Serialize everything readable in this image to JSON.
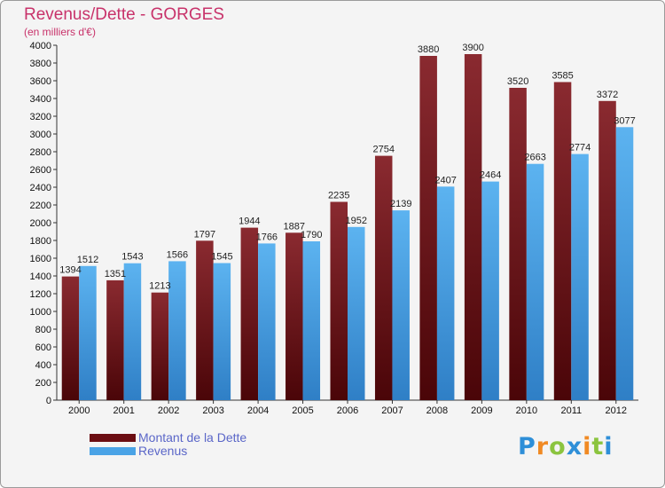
{
  "header": {
    "title": "Revenus/Dette - GORGES",
    "subtitle": "(en milliers d'€)"
  },
  "chart_data": {
    "type": "bar",
    "categories": [
      "2000",
      "2001",
      "2002",
      "2003",
      "2004",
      "2005",
      "2006",
      "2007",
      "2008",
      "2009",
      "2010",
      "2011",
      "2012"
    ],
    "series": [
      {
        "name": "Montant de la Dette",
        "color": "#7b1f24",
        "values": [
          1394,
          1351,
          1213,
          1797,
          1944,
          1887,
          2235,
          2754,
          3880,
          3900,
          3520,
          3585,
          3372
        ],
        "labels": [
          "1394",
          "1351",
          "1213",
          "1797",
          "1944",
          "1887",
          "2235",
          "2754",
          "3880",
          "3900",
          "3520",
          "3585",
          "3372"
        ]
      },
      {
        "name": "Revenus",
        "color": "#4aa3e6",
        "values": [
          1512,
          1543,
          1566,
          1545,
          1766,
          1790,
          1952,
          2139,
          2407,
          2464,
          2663,
          2774,
          3077
        ],
        "labels": [
          "1512",
          "1543",
          "1566",
          "1545",
          "1766",
          "1790",
          "1952",
          "2139",
          "2407",
          "2464",
          "2663",
          "2774",
          "3077"
        ]
      }
    ],
    "yticks": [
      "0",
      "200",
      "400",
      "600",
      "800",
      "1000",
      "1200",
      "1400",
      "1600",
      "1800",
      "2000",
      "2200",
      "2400",
      "2600",
      "2800",
      "3000",
      "3200",
      "3400",
      "3600",
      "3800",
      "4000"
    ],
    "ylim": [
      0,
      4000
    ],
    "grid": false,
    "legend_position": "bottom-left"
  },
  "legend": {
    "items": [
      {
        "label": "Montant de la Dette",
        "color": "#6b0d12"
      },
      {
        "label": "Revenus",
        "color": "#4aa3e6"
      }
    ]
  },
  "logo": {
    "letters": [
      "P",
      "r",
      "o",
      "x",
      "i",
      "t",
      "i"
    ],
    "colors": [
      "#2e8fd8",
      "#f08a24",
      "#8bc43f",
      "#2e8fd8",
      "#f08a24",
      "#8bc43f",
      "#2e8fd8"
    ]
  }
}
